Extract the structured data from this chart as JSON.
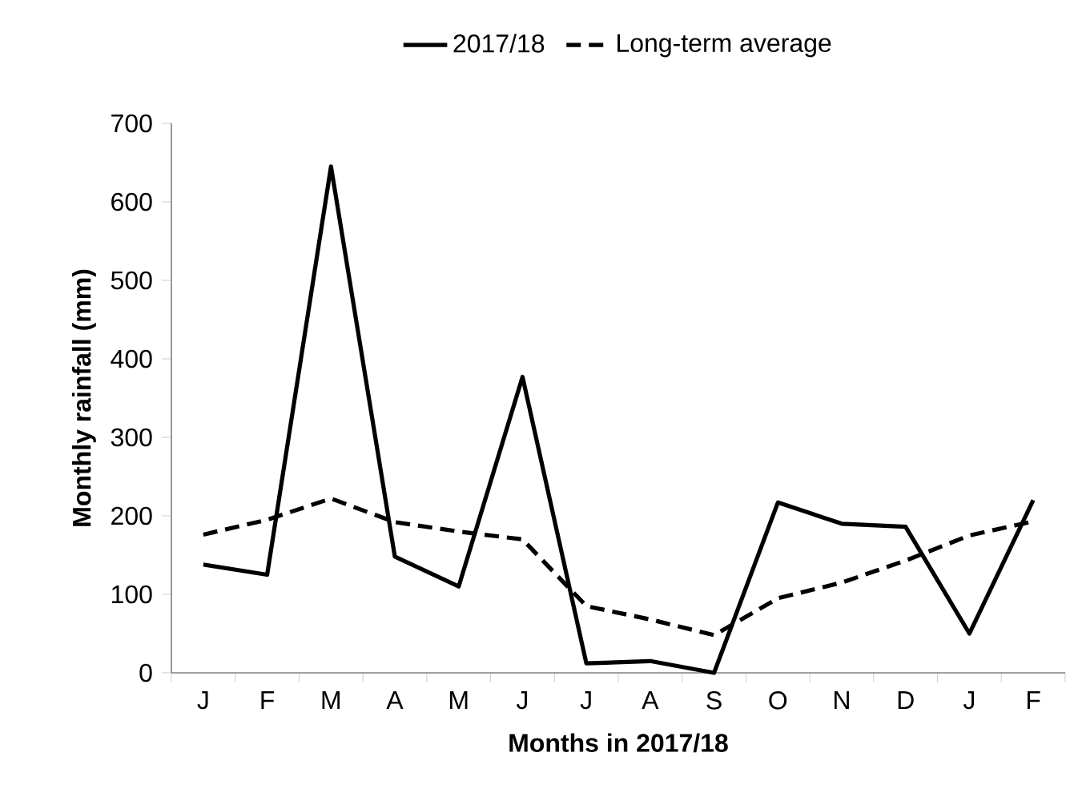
{
  "chart_data": {
    "type": "line",
    "xlabel": "Months in 2017/18",
    "ylabel": "Monthly rainfall (mm)",
    "categories": [
      "J",
      "F",
      "M",
      "A",
      "M",
      "J",
      "J",
      "A",
      "S",
      "O",
      "N",
      "D",
      "J",
      "F"
    ],
    "series": [
      {
        "name": "2017/18",
        "color": "#000000",
        "line_style": "solid",
        "values": [
          138,
          125,
          645,
          148,
          110,
          377,
          12,
          15,
          0,
          217,
          190,
          186,
          50,
          220
        ]
      },
      {
        "name": "Long-term average",
        "color": "#000000",
        "line_style": "dashed",
        "values": [
          176,
          195,
          222,
          192,
          180,
          170,
          85,
          68,
          48,
          95,
          115,
          143,
          175,
          193
        ]
      }
    ],
    "ylim": [
      0,
      700
    ],
    "yticks": [
      0,
      100,
      200,
      300,
      400,
      500,
      600,
      700
    ],
    "grid": false,
    "legend": "top",
    "marker": "none"
  }
}
